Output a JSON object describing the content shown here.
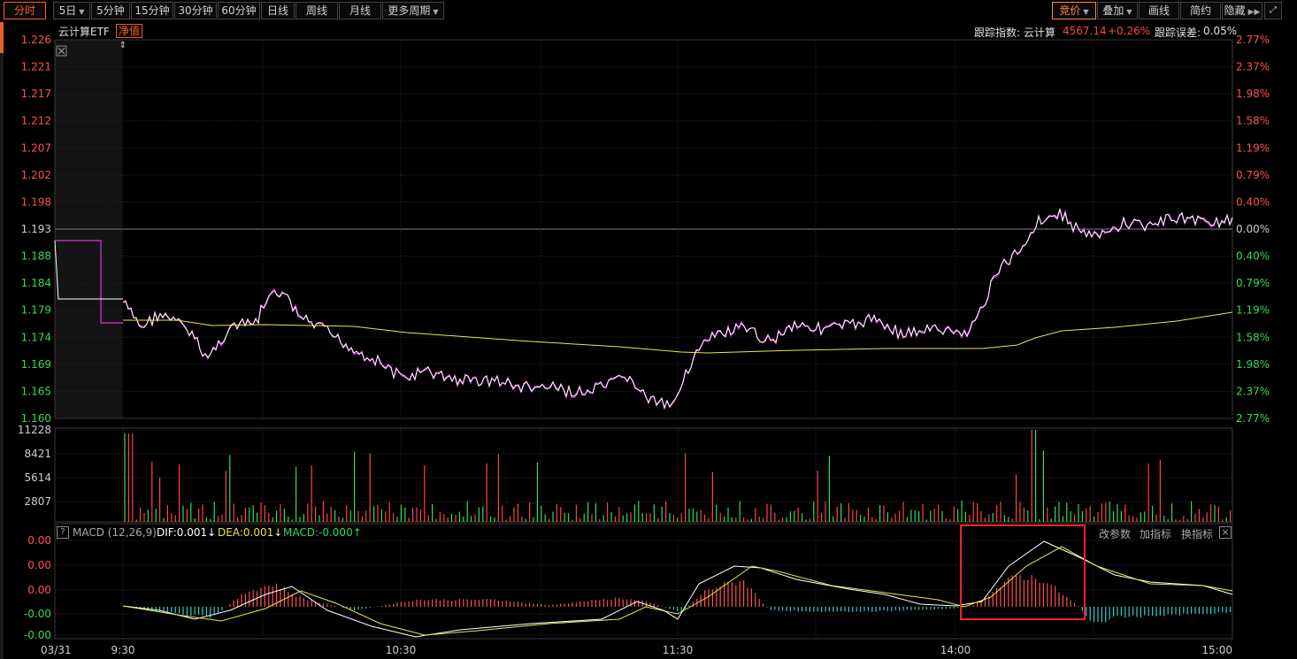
{
  "toolbar": {
    "left": [
      "分时",
      "5日",
      "5分钟",
      "15分钟",
      "30分钟",
      "60分钟",
      "日线",
      "周线",
      "月线",
      "更多周期"
    ],
    "right": [
      "竞价",
      "叠加",
      "画线",
      "简约",
      "隐藏"
    ]
  },
  "header": {
    "name": "云计算ETF",
    "nav_tag": "净值",
    "track_label": "跟踪指数: 云计算",
    "track_value": "4567.14",
    "track_change": "+0.26%",
    "error_label": "跟踪误差:",
    "error_value": "0.05%"
  },
  "price_axis": {
    "left": [
      "1.226",
      "1.221",
      "1.217",
      "1.212",
      "1.207",
      "1.202",
      "1.198",
      "1.193",
      "1.188",
      "1.184",
      "1.179",
      "1.174",
      "1.169",
      "1.165",
      "1.160"
    ],
    "right": [
      "2.77%",
      "2.37%",
      "1.98%",
      "1.58%",
      "1.19%",
      "0.79%",
      "0.40%",
      "0.00%",
      "0.40%",
      "0.79%",
      "1.19%",
      "1.58%",
      "1.98%",
      "2.37%",
      "2.77%"
    ]
  },
  "volume_axis": [
    "11228",
    "8421",
    "5614",
    "2807"
  ],
  "macd": {
    "help": "?",
    "title": "MACD (12,26,9)",
    "dif": "DIF:0.001↓",
    "dea": "DEA:0.001↓",
    "macd": "MACD:-0.000↑",
    "axis": [
      "0.00",
      "0.00",
      "0.00",
      "-0.00",
      "-0.00"
    ],
    "buttons": [
      "改参数",
      "加指标",
      "换指标"
    ],
    "close": "×"
  },
  "time_axis": [
    "03/31",
    "9:30",
    "10:30",
    "11:30",
    "14:00",
    "15:00"
  ],
  "colors": {
    "up": "#ff4444",
    "down": "#33dd55",
    "price": "#ffffff",
    "avg": "#e8e84a",
    "nav": "#dd33dd",
    "highlight": "#ff2222"
  }
}
